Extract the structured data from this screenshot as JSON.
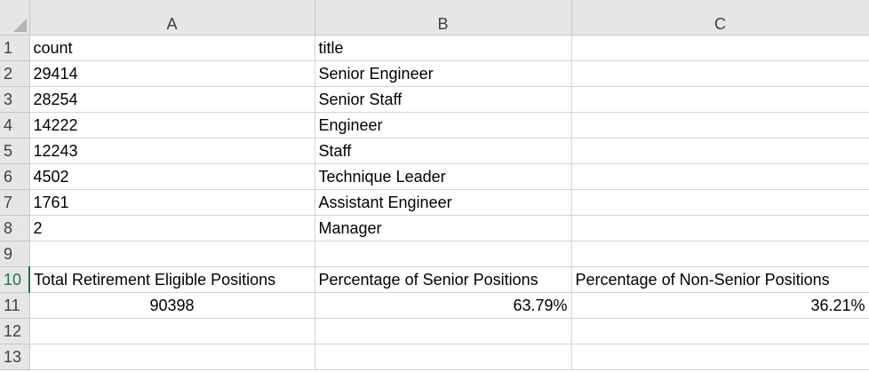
{
  "columns": [
    "A",
    "B",
    "C"
  ],
  "rows": [
    {
      "num": "1",
      "a": "count",
      "b": "title",
      "c": ""
    },
    {
      "num": "2",
      "a": "29414",
      "b": "Senior Engineer",
      "c": ""
    },
    {
      "num": "3",
      "a": "28254",
      "b": "Senior Staff",
      "c": ""
    },
    {
      "num": "4",
      "a": "14222",
      "b": "Engineer",
      "c": ""
    },
    {
      "num": "5",
      "a": "12243",
      "b": "Staff",
      "c": ""
    },
    {
      "num": "6",
      "a": "4502",
      "b": "Technique Leader",
      "c": ""
    },
    {
      "num": "7",
      "a": "1761",
      "b": "Assistant Engineer",
      "c": ""
    },
    {
      "num": "8",
      "a": "2",
      "b": "Manager",
      "c": ""
    },
    {
      "num": "9",
      "a": "",
      "b": "",
      "c": ""
    },
    {
      "num": "10",
      "a": "Total Retirement Eligible Positions",
      "b": "Percentage of Senior Positions",
      "c": "Percentage of Non-Senior Positions"
    },
    {
      "num": "11",
      "a": "90398",
      "b": "63.79%",
      "c": "36.21%"
    },
    {
      "num": "12",
      "a": "",
      "b": "",
      "c": ""
    },
    {
      "num": "13",
      "a": "",
      "b": "",
      "c": ""
    }
  ],
  "colors": {
    "header_bg": "#e6e6e6",
    "grid_line": "#d4d4d4",
    "selection_accent": "#217346"
  }
}
